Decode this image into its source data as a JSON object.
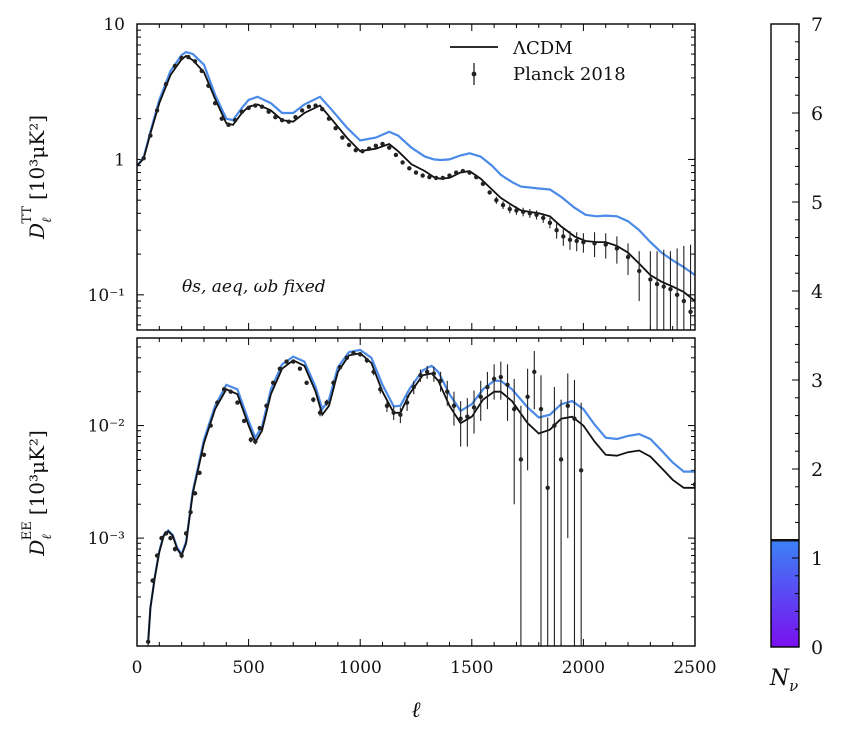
{
  "colors": {
    "lcdm": "#111111",
    "model": "#4a8ae8",
    "data": "#222222",
    "colorbar_low": "#7a10f0",
    "colorbar_high": "#3b82f6"
  },
  "chart_data": [
    {
      "type": "line",
      "panel": "top",
      "ylabel_main": "D",
      "ylabel_sub": "ℓ",
      "ylabel_sup": "TT",
      "ylabel_unit": "[10³μK²]",
      "yscale": "log",
      "xlim": [
        0,
        2500
      ],
      "ylim": [
        0.055,
        10
      ],
      "ytick_labels": [
        {
          "value": 10,
          "label": "10"
        },
        {
          "value": 1,
          "label": "1"
        },
        {
          "value": 0.1,
          "label": "10⁻¹"
        }
      ],
      "annotation": "θs, aeq, ωb fixed",
      "legend": {
        "position": "top-right",
        "entries": [
          "ΛCDM",
          "Planck 2018"
        ]
      },
      "series": [
        {
          "name": "ΛCDM",
          "x": [
            2,
            30,
            60,
            100,
            150,
            200,
            220,
            250,
            300,
            350,
            400,
            430,
            470,
            500,
            540,
            600,
            650,
            700,
            750,
            820,
            870,
            940,
            1000,
            1070,
            1130,
            1170,
            1230,
            1290,
            1330,
            1360,
            1400,
            1450,
            1490,
            1540,
            1590,
            1630,
            1680,
            1720,
            1760,
            1800,
            1850,
            1900,
            1960,
            2010,
            2060,
            2100,
            2150,
            2200,
            2250,
            2300,
            2350,
            2400,
            2450,
            2500
          ],
          "y": [
            0.9,
            1.02,
            1.55,
            2.6,
            4.2,
            5.5,
            5.8,
            5.4,
            4.4,
            2.8,
            1.85,
            1.8,
            2.2,
            2.45,
            2.55,
            2.3,
            1.95,
            1.9,
            2.2,
            2.5,
            2.0,
            1.45,
            1.15,
            1.2,
            1.3,
            1.15,
            0.92,
            0.82,
            0.74,
            0.72,
            0.73,
            0.8,
            0.82,
            0.72,
            0.6,
            0.52,
            0.46,
            0.42,
            0.41,
            0.4,
            0.38,
            0.32,
            0.27,
            0.25,
            0.245,
            0.245,
            0.23,
            0.205,
            0.17,
            0.14,
            0.125,
            0.115,
            0.105,
            0.09
          ]
        },
        {
          "name": "",
          "x": [
            2,
            30,
            60,
            100,
            150,
            200,
            220,
            250,
            300,
            350,
            400,
            430,
            470,
            500,
            540,
            600,
            650,
            700,
            750,
            820,
            870,
            940,
            1000,
            1070,
            1130,
            1170,
            1230,
            1290,
            1330,
            1360,
            1400,
            1450,
            1490,
            1540,
            1590,
            1630,
            1680,
            1720,
            1760,
            1800,
            1850,
            1900,
            1960,
            2010,
            2060,
            2100,
            2150,
            2200,
            2250,
            2300,
            2350,
            2400,
            2450,
            2500
          ],
          "y": [
            0.9,
            1.04,
            1.6,
            2.75,
            4.5,
            5.9,
            6.2,
            6.0,
            5.0,
            3.0,
            2.0,
            1.95,
            2.4,
            2.75,
            2.9,
            2.6,
            2.2,
            2.2,
            2.55,
            2.9,
            2.35,
            1.72,
            1.38,
            1.45,
            1.6,
            1.5,
            1.22,
            1.05,
            1.0,
            0.99,
            1.0,
            1.07,
            1.11,
            1.05,
            0.9,
            0.77,
            0.68,
            0.63,
            0.62,
            0.61,
            0.6,
            0.53,
            0.44,
            0.39,
            0.38,
            0.385,
            0.38,
            0.35,
            0.3,
            0.245,
            0.205,
            0.18,
            0.16,
            0.14
          ]
        }
      ],
      "data_points": {
        "name": "Planck 2018",
        "x": [
          30,
          60,
          90,
          130,
          170,
          200,
          230,
          260,
          290,
          320,
          350,
          380,
          410,
          440,
          470,
          500,
          530,
          560,
          590,
          620,
          650,
          680,
          710,
          740,
          770,
          800,
          830,
          860,
          890,
          920,
          950,
          980,
          1010,
          1040,
          1070,
          1100,
          1130,
          1160,
          1190,
          1220,
          1250,
          1280,
          1310,
          1340,
          1370,
          1400,
          1430,
          1460,
          1490,
          1520,
          1550,
          1580,
          1610,
          1640,
          1670,
          1700,
          1730,
          1760,
          1790,
          1820,
          1850,
          1880,
          1910,
          1940,
          1970,
          2000,
          2050,
          2100,
          2150,
          2200,
          2250,
          2300,
          2330,
          2360,
          2390,
          2420,
          2450,
          2480
        ],
        "y": [
          1.02,
          1.5,
          2.3,
          3.6,
          4.9,
          5.6,
          5.7,
          5.3,
          4.5,
          3.5,
          2.6,
          2.0,
          1.8,
          1.95,
          2.25,
          2.4,
          2.5,
          2.45,
          2.25,
          2.05,
          1.95,
          1.9,
          2.05,
          2.3,
          2.45,
          2.5,
          2.35,
          2.0,
          1.7,
          1.45,
          1.28,
          1.17,
          1.15,
          1.2,
          1.26,
          1.3,
          1.22,
          1.08,
          0.95,
          0.86,
          0.8,
          0.76,
          0.74,
          0.73,
          0.73,
          0.76,
          0.8,
          0.82,
          0.8,
          0.74,
          0.66,
          0.57,
          0.5,
          0.46,
          0.43,
          0.42,
          0.41,
          0.4,
          0.39,
          0.37,
          0.34,
          0.3,
          0.27,
          0.255,
          0.25,
          0.245,
          0.24,
          0.235,
          0.22,
          0.19,
          0.15,
          0.13,
          0.12,
          0.115,
          0.11,
          0.1,
          0.09,
          0.075
        ],
        "err": [
          0.02,
          0.02,
          0.02,
          0.03,
          0.03,
          0.03,
          0.03,
          0.03,
          0.03,
          0.03,
          0.03,
          0.02,
          0.02,
          0.02,
          0.02,
          0.02,
          0.02,
          0.02,
          0.02,
          0.02,
          0.02,
          0.02,
          0.02,
          0.02,
          0.02,
          0.02,
          0.02,
          0.02,
          0.02,
          0.02,
          0.02,
          0.02,
          0.02,
          0.02,
          0.02,
          0.02,
          0.02,
          0.02,
          0.02,
          0.02,
          0.02,
          0.02,
          0.02,
          0.02,
          0.02,
          0.02,
          0.02,
          0.02,
          0.02,
          0.02,
          0.02,
          0.02,
          0.03,
          0.03,
          0.03,
          0.03,
          0.03,
          0.03,
          0.03,
          0.03,
          0.03,
          0.04,
          0.04,
          0.04,
          0.04,
          0.04,
          0.05,
          0.05,
          0.05,
          0.05,
          0.06,
          0.08,
          0.09,
          0.1,
          0.1,
          0.12,
          0.14,
          0.16
        ]
      }
    },
    {
      "type": "line",
      "panel": "bottom",
      "ylabel_main": "D",
      "ylabel_sub": "ℓ",
      "ylabel_sup": "EE",
      "ylabel_unit": "[10³μK²]",
      "xlabel": "ℓ",
      "yscale": "log",
      "xlim": [
        0,
        2500
      ],
      "ylim": [
        0.00011,
        0.06
      ],
      "xtick_labels": [
        "0",
        "500",
        "1000",
        "1500",
        "2000",
        "2500"
      ],
      "ytick_labels": [
        {
          "value": 0.01,
          "label": "10⁻²"
        },
        {
          "value": 0.001,
          "label": "10⁻³"
        }
      ],
      "series": [
        {
          "name": "ΛCDM",
          "x": [
            50,
            60,
            80,
            100,
            120,
            140,
            160,
            180,
            200,
            220,
            250,
            300,
            350,
            400,
            450,
            500,
            530,
            560,
            600,
            650,
            700,
            750,
            800,
            830,
            860,
            900,
            950,
            1000,
            1050,
            1100,
            1150,
            1180,
            1220,
            1280,
            1320,
            1350,
            1400,
            1450,
            1500,
            1550,
            1600,
            1630,
            1680,
            1750,
            1800,
            1850,
            1900,
            1950,
            2000,
            2050,
            2100,
            2150,
            2200,
            2250,
            2300,
            2350,
            2400,
            2450,
            2500
          ],
          "y": [
            0.00012,
            0.00024,
            0.00045,
            0.00075,
            0.00105,
            0.00115,
            0.00105,
            0.0008,
            0.0007,
            0.0009,
            0.0025,
            0.007,
            0.014,
            0.021,
            0.019,
            0.01,
            0.0071,
            0.009,
            0.019,
            0.032,
            0.038,
            0.034,
            0.02,
            0.0125,
            0.015,
            0.03,
            0.042,
            0.044,
            0.036,
            0.02,
            0.013,
            0.013,
            0.019,
            0.028,
            0.029,
            0.025,
            0.015,
            0.0105,
            0.012,
            0.017,
            0.02,
            0.02,
            0.0165,
            0.0105,
            0.0085,
            0.0092,
            0.0115,
            0.012,
            0.01,
            0.0072,
            0.0055,
            0.0054,
            0.0058,
            0.006,
            0.0053,
            0.0042,
            0.0033,
            0.0028,
            0.0028
          ]
        },
        {
          "name": "",
          "x": [
            50,
            60,
            80,
            100,
            120,
            140,
            160,
            180,
            200,
            220,
            250,
            300,
            350,
            400,
            450,
            500,
            530,
            560,
            600,
            650,
            700,
            750,
            800,
            830,
            860,
            900,
            950,
            1000,
            1050,
            1100,
            1150,
            1180,
            1220,
            1280,
            1320,
            1350,
            1400,
            1450,
            1500,
            1550,
            1600,
            1630,
            1680,
            1750,
            1800,
            1850,
            1900,
            1950,
            2000,
            2050,
            2100,
            2150,
            2200,
            2250,
            2300,
            2350,
            2400,
            2450,
            2500
          ],
          "y": [
            0.00012,
            0.00024,
            0.00046,
            0.00077,
            0.00107,
            0.00117,
            0.00107,
            0.00082,
            0.00072,
            0.00093,
            0.0026,
            0.0075,
            0.015,
            0.023,
            0.021,
            0.011,
            0.0078,
            0.0098,
            0.021,
            0.035,
            0.041,
            0.037,
            0.022,
            0.014,
            0.017,
            0.033,
            0.045,
            0.047,
            0.04,
            0.023,
            0.0148,
            0.015,
            0.021,
            0.031,
            0.034,
            0.03,
            0.019,
            0.0135,
            0.0155,
            0.021,
            0.025,
            0.025,
            0.021,
            0.0145,
            0.0118,
            0.0125,
            0.0155,
            0.0165,
            0.014,
            0.0102,
            0.0078,
            0.0076,
            0.0081,
            0.0084,
            0.0076,
            0.006,
            0.0047,
            0.0039,
            0.0039
          ]
        }
      ],
      "data_points": {
        "name": "Planck 2018",
        "x": [
          50,
          70,
          90,
          110,
          130,
          150,
          170,
          200,
          220,
          240,
          260,
          280,
          300,
          330,
          360,
          390,
          420,
          450,
          480,
          510,
          530,
          550,
          580,
          610,
          640,
          670,
          700,
          730,
          760,
          790,
          820,
          850,
          880,
          910,
          940,
          970,
          1000,
          1030,
          1060,
          1090,
          1120,
          1150,
          1180,
          1210,
          1240,
          1270,
          1300,
          1330,
          1360,
          1390,
          1420,
          1450,
          1480,
          1510,
          1540,
          1570,
          1600,
          1630,
          1660,
          1690,
          1720,
          1750,
          1780,
          1810,
          1840,
          1870,
          1900,
          1930,
          1960,
          1990,
          2500
        ],
        "y": [
          0.00012,
          0.00042,
          0.0007,
          0.001,
          0.0011,
          0.001,
          0.0008,
          0.0007,
          0.0011,
          0.0017,
          0.0025,
          0.0038,
          0.0055,
          0.01,
          0.016,
          0.021,
          0.02,
          0.016,
          0.011,
          0.0075,
          0.0072,
          0.0095,
          0.015,
          0.024,
          0.032,
          0.037,
          0.037,
          0.032,
          0.024,
          0.017,
          0.013,
          0.016,
          0.024,
          0.033,
          0.04,
          0.044,
          0.043,
          0.038,
          0.03,
          0.021,
          0.015,
          0.013,
          0.0125,
          0.016,
          0.022,
          0.028,
          0.03,
          0.029,
          0.025,
          0.02,
          0.015,
          0.0115,
          0.012,
          0.0145,
          0.018,
          0.022,
          0.026,
          0.027,
          0.023,
          0.014,
          0.005,
          0.018,
          0.03,
          0.014,
          0.0028,
          0.01,
          0.005,
          0.015,
          0.0115,
          0.004,
          0.003
        ],
        "err": [
          1e-05,
          2e-05,
          3e-05,
          4e-05,
          4e-05,
          4e-05,
          4e-05,
          4e-05,
          5e-05,
          7e-05,
          0.0001,
          0.00015,
          0.0002,
          0.0003,
          0.0004,
          0.0005,
          0.0005,
          0.0005,
          0.0004,
          0.0004,
          0.0004,
          0.0004,
          0.0006,
          0.0008,
          0.001,
          0.0012,
          0.0012,
          0.0012,
          0.001,
          0.0009,
          0.0009,
          0.001,
          0.0012,
          0.0015,
          0.0018,
          0.002,
          0.002,
          0.002,
          0.002,
          0.0018,
          0.0018,
          0.0018,
          0.002,
          0.0025,
          0.003,
          0.0035,
          0.004,
          0.0045,
          0.005,
          0.005,
          0.005,
          0.005,
          0.0055,
          0.006,
          0.007,
          0.008,
          0.009,
          0.01,
          0.012,
          0.012,
          0.01,
          0.014,
          0.016,
          0.014,
          0.009,
          0.012,
          0.012,
          0.014,
          0.014,
          0.012,
          0.0015
        ]
      }
    },
    {
      "type": "colorbar",
      "label_main": "N",
      "label_sub": "ν",
      "range": [
        0,
        7
      ],
      "tick_labels": [
        "0",
        "1",
        "2",
        "3",
        "4",
        "5",
        "6",
        "7"
      ],
      "filled_to": 1.2
    }
  ]
}
